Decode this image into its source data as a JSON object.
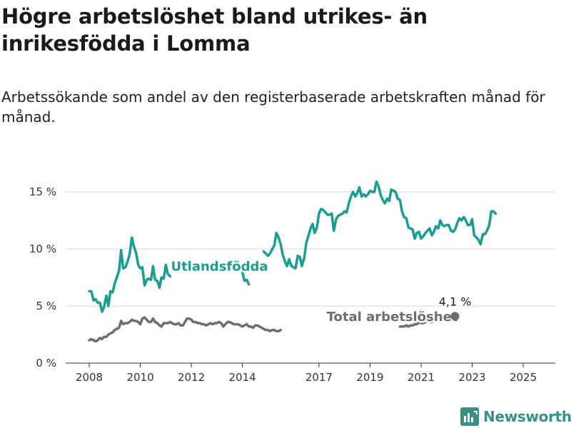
{
  "title": "Högre arbetslöshet bland utrikes- än inrikesfödda i Lomma",
  "subtitle": "Arbetssökande som andel av den registerbaserade arbetskraften månad för månad.",
  "brand": {
    "name": "Newsworthy",
    "icon": "newsworthy-logo-icon"
  },
  "chart_data": {
    "type": "line",
    "ylim": [
      0,
      17
    ],
    "y_ticks": [
      {
        "value": 0,
        "label": "0 %"
      },
      {
        "value": 5,
        "label": "5 %"
      },
      {
        "value": 10,
        "label": "10 %"
      },
      {
        "value": 15,
        "label": "15 %"
      }
    ],
    "x_ticks": [
      {
        "value": 2008,
        "label": "2008"
      },
      {
        "value": 2010,
        "label": "2010"
      },
      {
        "value": 2012,
        "label": "2012"
      },
      {
        "value": 2014,
        "label": "2014"
      },
      {
        "value": 2017,
        "label": "2017"
      },
      {
        "value": 2019,
        "label": "2019"
      },
      {
        "value": 2021,
        "label": "2021"
      },
      {
        "value": 2023,
        "label": "2023"
      },
      {
        "value": 2025,
        "label": "2025"
      }
    ],
    "grid": true,
    "series": [
      {
        "name": "Utlandsfödda",
        "color": "#1a9e93",
        "points": [
          [
            2008.0,
            6.3
          ],
          [
            2008.08,
            6.3
          ],
          [
            2008.17,
            5.5
          ],
          [
            2008.25,
            5.6
          ],
          [
            2008.33,
            5.3
          ],
          [
            2008.42,
            5.3
          ],
          [
            2008.5,
            4.5
          ],
          [
            2008.58,
            4.9
          ],
          [
            2008.67,
            5.9
          ],
          [
            2008.75,
            5.0
          ],
          [
            2008.83,
            6.3
          ],
          [
            2008.92,
            6.2
          ],
          [
            2009.0,
            7.0
          ],
          [
            2009.08,
            7.5
          ],
          [
            2009.17,
            8.1
          ],
          [
            2009.25,
            9.9
          ],
          [
            2009.33,
            8.3
          ],
          [
            2009.42,
            8.4
          ],
          [
            2009.5,
            8.9
          ],
          [
            2009.58,
            9.5
          ],
          [
            2009.67,
            11.0
          ],
          [
            2009.75,
            10.2
          ],
          [
            2009.83,
            9.7
          ],
          [
            2009.92,
            8.6
          ],
          [
            2010.0,
            8.3
          ],
          [
            2010.08,
            8.4
          ],
          [
            2010.17,
            6.8
          ],
          [
            2010.25,
            7.3
          ],
          [
            2010.33,
            7.4
          ],
          [
            2010.42,
            7.3
          ],
          [
            2010.5,
            8.5
          ],
          [
            2010.58,
            7.3
          ],
          [
            2010.67,
            7.2
          ],
          [
            2010.75,
            6.6
          ],
          [
            2010.83,
            7.5
          ],
          [
            2010.92,
            7.4
          ],
          [
            2011.0,
            8.6
          ],
          [
            2011.08,
            7.8
          ],
          [
            2011.17,
            7.6
          ],
          [
            2014.0,
            8.0
          ],
          [
            2014.08,
            7.2
          ],
          [
            2014.17,
            7.3
          ],
          [
            2014.25,
            6.9
          ],
          [
            2014.83,
            9.8
          ],
          [
            2014.92,
            9.6
          ],
          [
            2015.0,
            9.4
          ],
          [
            2015.08,
            9.6
          ],
          [
            2015.17,
            10.0
          ],
          [
            2015.25,
            10.3
          ],
          [
            2015.33,
            11.4
          ],
          [
            2015.42,
            11.0
          ],
          [
            2015.5,
            10.4
          ],
          [
            2015.58,
            9.5
          ],
          [
            2015.67,
            8.9
          ],
          [
            2015.75,
            8.5
          ],
          [
            2015.83,
            9.1
          ],
          [
            2015.92,
            8.5
          ],
          [
            2016.0,
            8.4
          ],
          [
            2016.08,
            8.3
          ],
          [
            2016.17,
            9.4
          ],
          [
            2016.25,
            9.3
          ],
          [
            2016.33,
            8.5
          ],
          [
            2016.42,
            9.2
          ],
          [
            2016.5,
            10.5
          ],
          [
            2016.58,
            11.1
          ],
          [
            2016.67,
            11.8
          ],
          [
            2016.75,
            12.2
          ],
          [
            2016.83,
            11.4
          ],
          [
            2016.92,
            11.9
          ],
          [
            2017.0,
            13.1
          ],
          [
            2017.08,
            13.5
          ],
          [
            2017.17,
            13.4
          ],
          [
            2017.25,
            13.2
          ],
          [
            2017.33,
            13.0
          ],
          [
            2017.42,
            13.0
          ],
          [
            2017.5,
            13.1
          ],
          [
            2017.58,
            11.6
          ],
          [
            2017.67,
            12.6
          ],
          [
            2017.75,
            12.9
          ],
          [
            2017.83,
            13.0
          ],
          [
            2017.92,
            13.1
          ],
          [
            2018.0,
            13.3
          ],
          [
            2018.08,
            13.2
          ],
          [
            2018.17,
            14.0
          ],
          [
            2018.25,
            14.6
          ],
          [
            2018.33,
            15.0
          ],
          [
            2018.42,
            14.6
          ],
          [
            2018.5,
            14.9
          ],
          [
            2018.58,
            15.4
          ],
          [
            2018.67,
            14.6
          ],
          [
            2018.75,
            14.8
          ],
          [
            2018.83,
            14.6
          ],
          [
            2018.92,
            14.8
          ],
          [
            2019.0,
            15.1
          ],
          [
            2019.08,
            15.0
          ],
          [
            2019.17,
            15.0
          ],
          [
            2019.25,
            15.9
          ],
          [
            2019.33,
            15.5
          ],
          [
            2019.42,
            14.7
          ],
          [
            2019.5,
            14.3
          ],
          [
            2019.58,
            14.0
          ],
          [
            2019.67,
            14.4
          ],
          [
            2019.75,
            14.2
          ],
          [
            2019.83,
            15.2
          ],
          [
            2019.92,
            15.1
          ],
          [
            2020.0,
            15.0
          ],
          [
            2020.08,
            14.4
          ],
          [
            2020.17,
            14.3
          ],
          [
            2020.25,
            13.3
          ],
          [
            2020.33,
            12.8
          ],
          [
            2020.42,
            12.7
          ],
          [
            2020.5,
            11.9
          ],
          [
            2020.58,
            11.8
          ],
          [
            2020.67,
            11.7
          ],
          [
            2020.75,
            10.9
          ],
          [
            2020.83,
            11.4
          ],
          [
            2020.92,
            11.5
          ],
          [
            2021.0,
            10.9
          ],
          [
            2021.08,
            11.1
          ],
          [
            2021.17,
            11.4
          ],
          [
            2021.25,
            11.6
          ],
          [
            2021.33,
            11.8
          ],
          [
            2021.42,
            11.2
          ],
          [
            2021.5,
            11.5
          ],
          [
            2021.58,
            12.0
          ],
          [
            2021.67,
            11.8
          ],
          [
            2021.75,
            12.5
          ],
          [
            2021.83,
            12.1
          ],
          [
            2021.92,
            12.0
          ],
          [
            2022.0,
            12.1
          ],
          [
            2022.08,
            12.1
          ],
          [
            2022.17,
            11.6
          ],
          [
            2022.25,
            11.5
          ],
          [
            2022.33,
            11.7
          ],
          [
            2022.42,
            12.3
          ],
          [
            2022.5,
            12.7
          ],
          [
            2022.58,
            12.5
          ],
          [
            2022.67,
            12.8
          ],
          [
            2022.75,
            12.5
          ],
          [
            2022.83,
            12.1
          ],
          [
            2022.92,
            12.1
          ],
          [
            2023.0,
            12.6
          ],
          [
            2023.08,
            11.2
          ],
          [
            2023.17,
            11.0
          ],
          [
            2023.25,
            10.8
          ],
          [
            2023.33,
            10.4
          ],
          [
            2023.42,
            11.3
          ],
          [
            2023.5,
            11.3
          ],
          [
            2023.58,
            11.6
          ],
          [
            2023.67,
            12.1
          ],
          [
            2023.75,
            13.3
          ],
          [
            2023.83,
            13.3
          ],
          [
            2023.92,
            13.1
          ]
        ],
        "label": "Utlandsfödda",
        "label_at": [
          2011.2,
          8.1
        ]
      },
      {
        "name": "Total arbetslöshet",
        "color": "#6d6d73",
        "points": [
          [
            2008.0,
            2.0
          ],
          [
            2008.08,
            2.1
          ],
          [
            2008.17,
            2.0
          ],
          [
            2008.25,
            1.9
          ],
          [
            2008.33,
            2.0
          ],
          [
            2008.42,
            2.2
          ],
          [
            2008.5,
            2.1
          ],
          [
            2008.58,
            2.3
          ],
          [
            2008.67,
            2.3
          ],
          [
            2008.75,
            2.5
          ],
          [
            2008.83,
            2.6
          ],
          [
            2008.92,
            2.7
          ],
          [
            2009.0,
            2.9
          ],
          [
            2009.08,
            3.0
          ],
          [
            2009.17,
            3.1
          ],
          [
            2009.25,
            3.7
          ],
          [
            2009.33,
            3.4
          ],
          [
            2009.42,
            3.5
          ],
          [
            2009.5,
            3.5
          ],
          [
            2009.58,
            3.6
          ],
          [
            2009.67,
            3.8
          ],
          [
            2009.75,
            3.7
          ],
          [
            2009.83,
            3.7
          ],
          [
            2009.92,
            3.6
          ],
          [
            2010.0,
            3.4
          ],
          [
            2010.08,
            3.9
          ],
          [
            2010.17,
            4.0
          ],
          [
            2010.25,
            3.8
          ],
          [
            2010.33,
            3.6
          ],
          [
            2010.42,
            3.6
          ],
          [
            2010.5,
            3.9
          ],
          [
            2010.58,
            3.6
          ],
          [
            2010.67,
            3.5
          ],
          [
            2010.75,
            3.3
          ],
          [
            2010.83,
            3.2
          ],
          [
            2010.92,
            3.5
          ],
          [
            2011.0,
            3.5
          ],
          [
            2011.08,
            3.5
          ],
          [
            2011.17,
            3.6
          ],
          [
            2011.25,
            3.5
          ],
          [
            2011.33,
            3.4
          ],
          [
            2011.42,
            3.4
          ],
          [
            2011.5,
            3.5
          ],
          [
            2011.58,
            3.3
          ],
          [
            2011.67,
            3.3
          ],
          [
            2011.75,
            3.6
          ],
          [
            2011.83,
            3.9
          ],
          [
            2011.92,
            3.9
          ],
          [
            2012.0,
            3.8
          ],
          [
            2012.08,
            3.6
          ],
          [
            2012.17,
            3.6
          ],
          [
            2012.25,
            3.5
          ],
          [
            2012.33,
            3.5
          ],
          [
            2012.42,
            3.4
          ],
          [
            2012.5,
            3.4
          ],
          [
            2012.58,
            3.3
          ],
          [
            2012.67,
            3.4
          ],
          [
            2012.75,
            3.5
          ],
          [
            2012.83,
            3.4
          ],
          [
            2012.92,
            3.5
          ],
          [
            2013.0,
            3.5
          ],
          [
            2013.08,
            3.6
          ],
          [
            2013.17,
            3.5
          ],
          [
            2013.25,
            3.2
          ],
          [
            2013.33,
            3.4
          ],
          [
            2013.42,
            3.6
          ],
          [
            2013.5,
            3.6
          ],
          [
            2013.58,
            3.5
          ],
          [
            2013.67,
            3.4
          ],
          [
            2013.75,
            3.4
          ],
          [
            2013.83,
            3.4
          ],
          [
            2013.92,
            3.3
          ],
          [
            2014.0,
            3.2
          ],
          [
            2014.08,
            3.3
          ],
          [
            2014.17,
            3.4
          ],
          [
            2014.25,
            3.2
          ],
          [
            2014.33,
            3.2
          ],
          [
            2014.42,
            3.1
          ],
          [
            2014.5,
            3.3
          ],
          [
            2014.58,
            3.3
          ],
          [
            2014.67,
            3.2
          ],
          [
            2014.75,
            3.1
          ],
          [
            2014.83,
            3.0
          ],
          [
            2014.92,
            2.9
          ],
          [
            2015.0,
            2.9
          ],
          [
            2015.08,
            2.8
          ],
          [
            2015.17,
            2.9
          ],
          [
            2015.25,
            2.9
          ],
          [
            2015.33,
            2.8
          ],
          [
            2015.42,
            2.8
          ],
          [
            2015.5,
            2.9
          ],
          [
            2020.17,
            3.2
          ],
          [
            2020.25,
            3.2
          ],
          [
            2020.33,
            3.2
          ],
          [
            2020.42,
            3.3
          ],
          [
            2020.5,
            3.2
          ],
          [
            2020.58,
            3.3
          ],
          [
            2020.67,
            3.3
          ],
          [
            2020.75,
            3.4
          ],
          [
            2020.83,
            3.4
          ],
          [
            2020.92,
            3.6
          ],
          [
            2021.0,
            3.5
          ],
          [
            2021.08,
            3.5
          ],
          [
            2021.17,
            3.6
          ],
          [
            2021.25,
            3.7
          ],
          [
            2021.33,
            3.6
          ],
          [
            2021.42,
            3.6
          ],
          [
            2021.5,
            3.7
          ],
          [
            2021.58,
            3.7
          ],
          [
            2021.67,
            3.8
          ],
          [
            2021.75,
            3.7
          ],
          [
            2021.83,
            3.8
          ],
          [
            2021.92,
            3.9
          ],
          [
            2022.0,
            3.8
          ],
          [
            2022.08,
            3.9
          ],
          [
            2022.17,
            4.0
          ],
          [
            2022.25,
            4.0
          ],
          [
            2022.33,
            4.1
          ]
        ],
        "label": "Total arbetslöshet",
        "label_at": [
          2017.3,
          3.7
        ],
        "last_value": {
          "x": 2022.33,
          "y": 4.1,
          "label": "4,1 %"
        }
      }
    ]
  }
}
